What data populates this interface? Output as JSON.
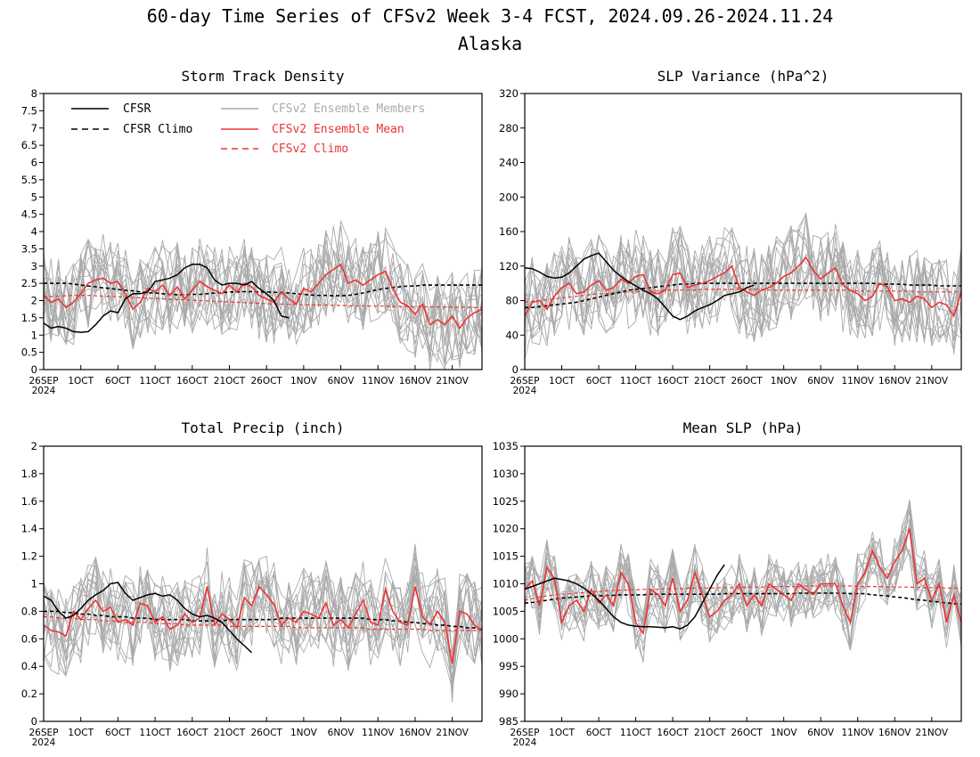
{
  "figure": {
    "title": "60-day Time Series of CFSv2 Week 3-4 FCST, 2024.09.26-2024.11.24",
    "subtitle": "Alaska"
  },
  "colors": {
    "cfsr": "#000000",
    "members": "#aaaaaa",
    "mean": "#ee3333",
    "cfsv2_climo": "#ee3333"
  },
  "legend": {
    "cfsr": "CFSR",
    "cfsr_climo": "CFSR Climo",
    "members": "CFSv2 Ensemble Members",
    "mean": "CFSv2 Ensemble Mean",
    "cfsv2_climo": "CFSv2 Climo"
  },
  "chart_data": [
    {
      "type": "line",
      "title": "Storm Track Density",
      "ylim": [
        0,
        8
      ],
      "yticks": [
        "0",
        "0.5",
        "1",
        "1.5",
        "2",
        "2.5",
        "3",
        "3.5",
        "4",
        "4.5",
        "5",
        "5.5",
        "6",
        "6.5",
        "7",
        "7.5",
        "8"
      ],
      "xticks": [
        "26SEP",
        "1OCT",
        "6OCT",
        "11OCT",
        "16OCT",
        "21OCT",
        "26OCT",
        "1NOV",
        "6NOV",
        "11NOV",
        "16NOV",
        "21NOV"
      ],
      "xtick_year": "2024",
      "x_days": 60,
      "cfsr": [
        1.35,
        1.2,
        1.25,
        1.2,
        1.1,
        1.08,
        1.1,
        1.3,
        1.55,
        1.7,
        1.65,
        2.05,
        2.2,
        2.2,
        2.25,
        2.55,
        2.6,
        2.65,
        2.75,
        2.95,
        3.05,
        3.05,
        2.95,
        2.6,
        2.45,
        2.5,
        2.5,
        2.45,
        2.55,
        2.35,
        2.2,
        2.0,
        1.55,
        1.5
      ],
      "cfsr_climo": [
        2.5,
        2.5,
        2.5,
        2.5,
        2.48,
        2.45,
        2.42,
        2.4,
        2.37,
        2.35,
        2.32,
        2.3,
        2.28,
        2.25,
        2.23,
        2.22,
        2.2,
        2.18,
        2.17,
        2.17,
        2.18,
        2.18,
        2.2,
        2.22,
        2.23,
        2.25,
        2.25,
        2.26,
        2.26,
        2.25,
        2.25,
        2.24,
        2.23,
        2.22,
        2.2,
        2.18,
        2.16,
        2.15,
        2.15,
        2.14,
        2.14,
        2.15,
        2.18,
        2.22,
        2.27,
        2.32,
        2.35,
        2.38,
        2.4,
        2.42,
        2.42,
        2.45,
        2.45,
        2.45,
        2.45,
        2.45,
        2.45,
        2.45,
        2.45,
        2.45
      ],
      "cfsv2_mean": [
        2.15,
        1.95,
        2.05,
        1.8,
        1.95,
        2.2,
        2.5,
        2.6,
        2.65,
        2.5,
        2.55,
        2.2,
        1.75,
        1.95,
        2.35,
        2.25,
        2.45,
        2.15,
        2.4,
        2.05,
        2.3,
        2.55,
        2.4,
        2.3,
        2.2,
        2.45,
        2.25,
        2.5,
        2.4,
        2.15,
        2.05,
        1.95,
        2.25,
        2.05,
        1.9,
        2.35,
        2.25,
        2.5,
        2.75,
        2.9,
        3.05,
        2.5,
        2.6,
        2.45,
        2.6,
        2.75,
        2.85,
        2.35,
        1.95,
        1.85,
        1.6,
        1.9,
        1.3,
        1.45,
        1.3,
        1.55,
        1.2,
        1.5,
        1.65,
        1.75
      ],
      "cfsv2_climo": [
        2.1,
        2.12,
        2.13,
        2.14,
        2.15,
        2.15,
        2.15,
        2.14,
        2.13,
        2.12,
        2.11,
        2.1,
        2.09,
        2.08,
        2.07,
        2.06,
        2.05,
        2.04,
        2.03,
        2.02,
        2.01,
        2.0,
        1.99,
        1.98,
        1.97,
        1.96,
        1.95,
        1.94,
        1.93,
        1.92,
        1.91,
        1.9,
        1.9,
        1.89,
        1.89,
        1.88,
        1.88,
        1.87,
        1.87,
        1.86,
        1.86,
        1.85,
        1.85,
        1.85,
        1.84,
        1.84,
        1.84,
        1.83,
        1.83,
        1.83,
        1.82,
        1.82,
        1.82,
        1.82,
        1.81,
        1.81,
        1.81,
        1.81,
        1.8,
        1.8
      ],
      "members_spread": 1.3,
      "members_count": 16
    },
    {
      "type": "line",
      "title": "SLP Variance (hPa^2)",
      "ylim": [
        0,
        320
      ],
      "yticks": [
        "0",
        "40",
        "80",
        "120",
        "160",
        "200",
        "240",
        "280",
        "320"
      ],
      "xticks": [
        "26SEP",
        "1OCT",
        "6OCT",
        "11OCT",
        "16OCT",
        "21OCT",
        "26OCT",
        "1NOV",
        "6NOV",
        "11NOV",
        "16NOV",
        "21NOV"
      ],
      "xtick_year": "2024",
      "x_days": 60,
      "cfsr": [
        118,
        117,
        113,
        108,
        106,
        107,
        112,
        120,
        128,
        132,
        135,
        125,
        115,
        108,
        102,
        97,
        92,
        88,
        82,
        72,
        62,
        58,
        62,
        68,
        72,
        75,
        80,
        86,
        88,
        90,
        95,
        98
      ],
      "cfsr_climo": [
        72,
        72,
        73,
        74,
        75,
        76,
        77,
        78,
        80,
        82,
        84,
        86,
        88,
        90,
        92,
        93,
        94,
        95,
        96,
        97,
        98,
        99,
        99,
        100,
        100,
        100,
        100,
        100,
        100,
        100,
        100,
        100,
        100,
        100,
        100,
        100,
        100,
        100,
        100,
        100,
        100,
        100,
        100,
        100,
        100,
        100,
        100,
        100,
        99,
        99,
        99,
        99,
        98,
        98,
        98,
        98,
        97,
        97,
        97,
        97
      ],
      "cfsv2_mean": [
        62,
        78,
        80,
        70,
        85,
        95,
        100,
        88,
        90,
        98,
        103,
        92,
        95,
        105,
        100,
        108,
        110,
        90,
        88,
        92,
        110,
        112,
        95,
        98,
        100,
        103,
        108,
        112,
        120,
        95,
        90,
        86,
        92,
        95,
        100,
        108,
        112,
        120,
        130,
        115,
        105,
        112,
        118,
        98,
        92,
        88,
        80,
        85,
        100,
        96,
        80,
        82,
        78,
        85,
        82,
        72,
        78,
        75,
        62,
        90
      ],
      "cfsv2_climo": [
        78,
        79,
        80,
        81,
        82,
        83,
        84,
        85,
        86,
        87,
        88,
        88,
        89,
        89,
        90,
        90,
        91,
        91,
        91,
        92,
        92,
        92,
        92,
        92,
        93,
        93,
        93,
        93,
        93,
        93,
        93,
        93,
        93,
        92,
        92,
        92,
        92,
        92,
        92,
        92,
        92,
        92,
        92,
        92,
        92,
        91,
        91,
        91,
        91,
        91,
        91,
        91,
        91,
        90,
        90,
        90,
        90,
        90,
        90,
        90
      ],
      "members_spread": 55,
      "members_count": 16
    },
    {
      "type": "line",
      "title": "Total Precip (inch)",
      "ylim": [
        0,
        2
      ],
      "yticks": [
        "0",
        "0.2",
        "0.4",
        "0.6",
        "0.8",
        "1",
        "1.2",
        "1.4",
        "1.6",
        "1.8",
        "2"
      ],
      "xticks": [
        "26SEP",
        "1OCT",
        "6OCT",
        "11OCT",
        "16OCT",
        "21OCT",
        "26OCT",
        "1NOV",
        "6NOV",
        "11NOV",
        "16NOV",
        "21NOV"
      ],
      "xtick_year": "2024",
      "x_days": 60,
      "cfsr": [
        0.91,
        0.88,
        0.8,
        0.75,
        0.77,
        0.82,
        0.88,
        0.92,
        0.95,
        1.0,
        1.01,
        0.93,
        0.88,
        0.9,
        0.92,
        0.93,
        0.91,
        0.92,
        0.88,
        0.82,
        0.78,
        0.76,
        0.77,
        0.75,
        0.72,
        0.66,
        0.6,
        0.55,
        0.5
      ],
      "cfsr_climo": [
        0.8,
        0.8,
        0.8,
        0.79,
        0.79,
        0.78,
        0.78,
        0.77,
        0.77,
        0.76,
        0.76,
        0.76,
        0.75,
        0.75,
        0.75,
        0.74,
        0.74,
        0.74,
        0.74,
        0.74,
        0.73,
        0.73,
        0.73,
        0.73,
        0.73,
        0.74,
        0.74,
        0.74,
        0.74,
        0.74,
        0.74,
        0.74,
        0.75,
        0.75,
        0.75,
        0.75,
        0.75,
        0.75,
        0.75,
        0.75,
        0.75,
        0.75,
        0.75,
        0.75,
        0.74,
        0.74,
        0.74,
        0.73,
        0.73,
        0.72,
        0.72,
        0.71,
        0.71,
        0.7,
        0.7,
        0.69,
        0.69,
        0.68,
        0.68,
        0.67
      ],
      "cfsv2_mean": [
        0.7,
        0.66,
        0.65,
        0.62,
        0.8,
        0.74,
        0.82,
        0.88,
        0.8,
        0.83,
        0.72,
        0.74,
        0.7,
        0.86,
        0.84,
        0.72,
        0.76,
        0.67,
        0.7,
        0.78,
        0.72,
        0.75,
        0.98,
        0.7,
        0.78,
        0.74,
        0.68,
        0.9,
        0.84,
        0.98,
        0.92,
        0.85,
        0.7,
        0.75,
        0.72,
        0.8,
        0.78,
        0.75,
        0.86,
        0.7,
        0.74,
        0.68,
        0.78,
        0.88,
        0.72,
        0.7,
        0.96,
        0.8,
        0.72,
        0.7,
        0.98,
        0.76,
        0.7,
        0.8,
        0.72,
        0.42,
        0.8,
        0.78,
        0.7,
        0.66
      ],
      "cfsv2_climo": [
        0.76,
        0.76,
        0.75,
        0.75,
        0.75,
        0.74,
        0.74,
        0.74,
        0.73,
        0.73,
        0.73,
        0.72,
        0.72,
        0.72,
        0.72,
        0.71,
        0.71,
        0.71,
        0.71,
        0.7,
        0.7,
        0.7,
        0.7,
        0.7,
        0.7,
        0.69,
        0.69,
        0.69,
        0.69,
        0.69,
        0.69,
        0.69,
        0.69,
        0.69,
        0.68,
        0.68,
        0.68,
        0.68,
        0.68,
        0.68,
        0.68,
        0.68,
        0.68,
        0.68,
        0.67,
        0.67,
        0.67,
        0.67,
        0.67,
        0.67,
        0.67,
        0.67,
        0.66,
        0.66,
        0.66,
        0.66,
        0.66,
        0.66,
        0.66,
        0.66
      ],
      "members_spread": 0.32,
      "members_count": 16
    },
    {
      "type": "line",
      "title": "Mean SLP (hPa)",
      "ylim": [
        985,
        1035
      ],
      "yticks": [
        "985",
        "990",
        "995",
        "1000",
        "1005",
        "1010",
        "1015",
        "1020",
        "1025",
        "1030",
        "1035"
      ],
      "xticks": [
        "26SEP",
        "1OCT",
        "6OCT",
        "11OCT",
        "16OCT",
        "21OCT",
        "26OCT",
        "1NOV",
        "6NOV",
        "11NOV",
        "16NOV",
        "21NOV"
      ],
      "xtick_year": "2024",
      "x_days": 60,
      "cfsr": [
        1009,
        1009.5,
        1010,
        1010.5,
        1011,
        1010.8,
        1010.5,
        1010,
        1009.2,
        1008.2,
        1007,
        1005.5,
        1004,
        1003,
        1002.5,
        1002.3,
        1002.2,
        1002.2,
        1002.1,
        1002,
        1002.2,
        1001.8,
        1002.5,
        1004,
        1006.5,
        1009,
        1011.5,
        1013.5
      ],
      "cfsr_climo": [
        1006.5,
        1006.6,
        1006.8,
        1007,
        1007.2,
        1007.4,
        1007.5,
        1007.6,
        1007.7,
        1007.8,
        1007.8,
        1007.9,
        1007.9,
        1008,
        1008,
        1008,
        1008,
        1008.1,
        1008.1,
        1008.1,
        1008.1,
        1008.1,
        1008.1,
        1008.1,
        1008.1,
        1008.1,
        1008.1,
        1008.2,
        1008.2,
        1008.2,
        1008.2,
        1008.2,
        1008.2,
        1008.2,
        1008.2,
        1008.2,
        1008.2,
        1008.3,
        1008.3,
        1008.3,
        1008.3,
        1008.3,
        1008.3,
        1008.3,
        1008.2,
        1008.2,
        1008.2,
        1008,
        1007.9,
        1007.8,
        1007.6,
        1007.5,
        1007.3,
        1007.1,
        1007,
        1006.8,
        1006.7,
        1006.5,
        1006.4,
        1006.3
      ],
      "cfsv2_mean": [
        1009,
        1010.5,
        1006,
        1013,
        1011,
        1003,
        1006,
        1007,
        1005,
        1009,
        1006.5,
        1008,
        1006,
        1012,
        1010,
        1003,
        1001,
        1009,
        1008,
        1006,
        1011,
        1005,
        1007,
        1012,
        1008,
        1004,
        1005,
        1007,
        1008,
        1010,
        1006,
        1008,
        1006,
        1010,
        1009,
        1008,
        1007,
        1010,
        1009,
        1008,
        1010,
        1010,
        1010,
        1006,
        1003,
        1010,
        1012,
        1016,
        1013,
        1011,
        1014,
        1016,
        1020,
        1010,
        1011,
        1007,
        1010,
        1003,
        1008,
        1003
      ],
      "cfsv2_climo": [
        1007,
        1007.3,
        1007.6,
        1007.8,
        1008,
        1008.1,
        1008.2,
        1008.3,
        1008.4,
        1008.5,
        1008.6,
        1008.7,
        1008.8,
        1008.8,
        1008.9,
        1008.9,
        1009,
        1009,
        1009,
        1009.1,
        1009.1,
        1009.1,
        1009.2,
        1009.2,
        1009.2,
        1009.2,
        1009.3,
        1009.3,
        1009.3,
        1009.3,
        1009.4,
        1009.4,
        1009.4,
        1009.4,
        1009.5,
        1009.5,
        1009.5,
        1009.5,
        1009.6,
        1009.6,
        1009.6,
        1009.6,
        1009.6,
        1009.6,
        1009.6,
        1009.5,
        1009.5,
        1009.5,
        1009.5,
        1009.4,
        1009.4,
        1009.4,
        1009.4,
        1009.3,
        1009.3,
        1009.3,
        1009.3,
        1009.2,
        1009.2,
        1009.2
      ],
      "members_spread": 5.5,
      "members_count": 16
    }
  ]
}
